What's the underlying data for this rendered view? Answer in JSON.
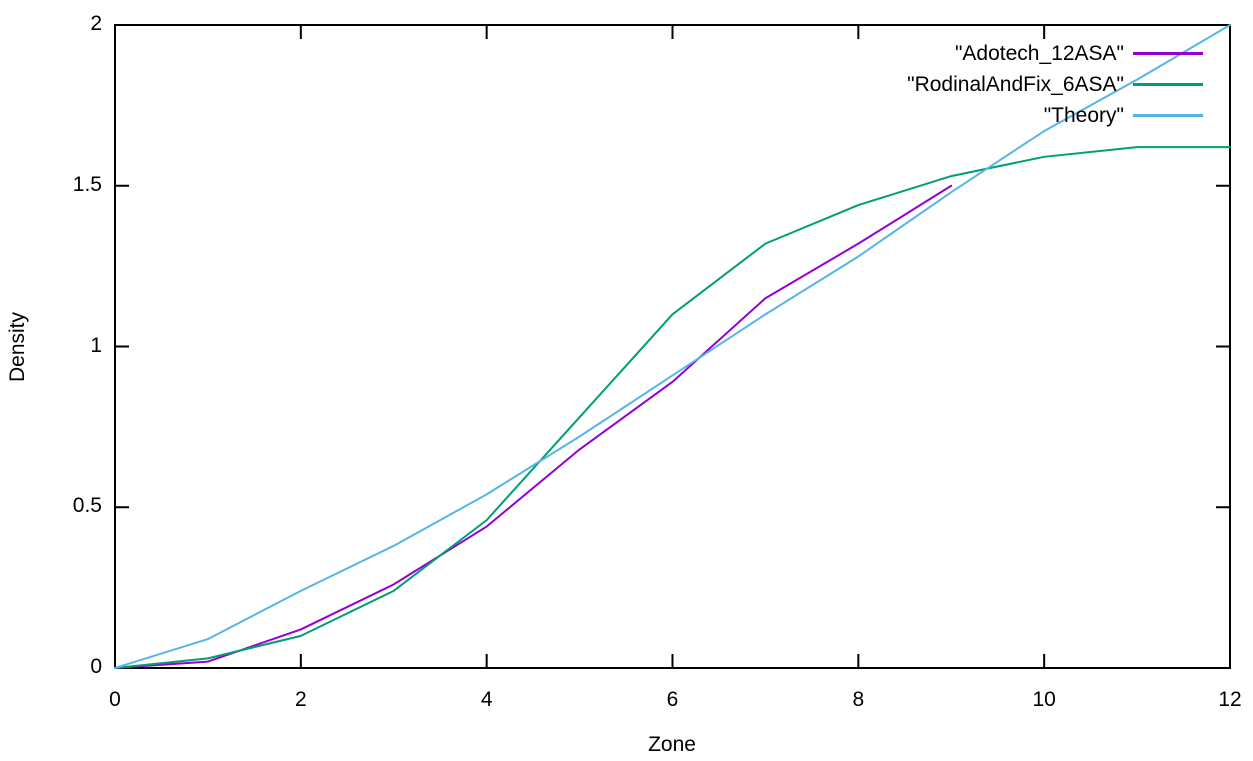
{
  "chart_data": {
    "type": "line",
    "title": "",
    "xlabel": "Zone",
    "ylabel": "Density",
    "xlim": [
      0,
      12
    ],
    "ylim": [
      0,
      2
    ],
    "x_ticks": [
      "0",
      "2",
      "4",
      "6",
      "8",
      "10",
      "12"
    ],
    "x_tick_values": [
      0,
      2,
      4,
      6,
      8,
      10,
      12
    ],
    "y_ticks": [
      "0",
      "0.5",
      "1",
      "1.5",
      "2"
    ],
    "y_tick_values": [
      0,
      0.5,
      1,
      1.5,
      2
    ],
    "grid": false,
    "legend_position": "top-right-inside",
    "background_color": "#ffffff",
    "axis_color": "#000000",
    "series": [
      {
        "name": "\"Adotech_12ASA\"",
        "color": "#9400d3",
        "x": [
          0,
          1,
          2,
          3,
          4,
          5,
          6,
          7,
          8,
          9
        ],
        "values": [
          0,
          0.02,
          0.12,
          0.26,
          0.44,
          0.68,
          0.89,
          1.15,
          1.32,
          1.5
        ]
      },
      {
        "name": "\"RodinalAndFix_6ASA\"",
        "color": "#009e73",
        "x": [
          0,
          1,
          2,
          3,
          4,
          5,
          6,
          7,
          8,
          9,
          10,
          11,
          12
        ],
        "values": [
          0,
          0.03,
          0.1,
          0.24,
          0.46,
          0.78,
          1.1,
          1.32,
          1.44,
          1.53,
          1.59,
          1.62,
          1.62
        ]
      },
      {
        "name": "\"Theory\"",
        "color": "#56b4e9",
        "x": [
          0,
          1,
          2,
          3,
          4,
          5,
          6,
          7,
          8,
          9,
          10,
          11,
          12
        ],
        "values": [
          0,
          0.09,
          0.24,
          0.38,
          0.54,
          0.72,
          0.91,
          1.1,
          1.28,
          1.48,
          1.67,
          1.83,
          2.0
        ]
      }
    ]
  }
}
